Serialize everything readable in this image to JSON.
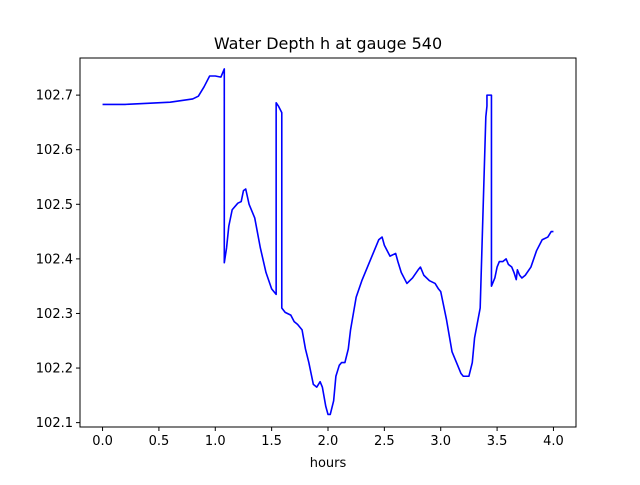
{
  "chart_data": {
    "type": "line",
    "title": "Water Depth h at gauge 540",
    "xlabel": "hours",
    "ylabel": "",
    "xlim": [
      -0.2,
      4.2
    ],
    "ylim": [
      102.092,
      102.768
    ],
    "grid": false,
    "legend": "none",
    "xticks": [
      0.0,
      0.5,
      1.0,
      1.5,
      2.0,
      2.5,
      3.0,
      3.5,
      4.0
    ],
    "xtick_labels": [
      "0.0",
      "0.5",
      "1.0",
      "1.5",
      "2.0",
      "2.5",
      "3.0",
      "3.5",
      "4.0"
    ],
    "yticks": [
      102.1,
      102.2,
      102.3,
      102.4,
      102.5,
      102.6,
      102.7
    ],
    "ytick_labels": [
      "102.1",
      "102.2",
      "102.3",
      "102.4",
      "102.5",
      "102.6",
      "102.7"
    ],
    "series": [
      {
        "color": "#0000ff",
        "x": [
          0.0,
          0.2,
          0.4,
          0.6,
          0.7,
          0.8,
          0.85,
          0.9,
          0.95,
          1.0,
          1.05,
          1.08,
          1.08,
          1.1,
          1.12,
          1.15,
          1.2,
          1.23,
          1.25,
          1.27,
          1.3,
          1.35,
          1.4,
          1.45,
          1.5,
          1.54,
          1.54,
          1.56,
          1.59,
          1.59,
          1.62,
          1.67,
          1.7,
          1.73,
          1.77,
          1.8,
          1.83,
          1.85,
          1.87,
          1.9,
          1.93,
          1.95,
          1.98,
          2.0,
          2.02,
          2.05,
          2.07,
          2.1,
          2.12,
          2.15,
          2.18,
          2.2,
          2.25,
          2.3,
          2.35,
          2.4,
          2.45,
          2.48,
          2.5,
          2.55,
          2.6,
          2.62,
          2.65,
          2.7,
          2.75,
          2.8,
          2.82,
          2.85,
          2.9,
          2.95,
          2.98,
          3.0,
          3.05,
          3.1,
          3.15,
          3.18,
          3.2,
          3.25,
          3.28,
          3.3,
          3.35,
          3.4,
          3.41,
          3.41,
          3.45,
          3.45,
          3.48,
          3.5,
          3.52,
          3.55,
          3.58,
          3.6,
          3.63,
          3.65,
          3.67,
          3.68,
          3.7,
          3.72,
          3.75,
          3.8,
          3.85,
          3.9,
          3.95,
          3.98,
          4.0
        ],
        "y": [
          102.683,
          102.683,
          102.685,
          102.687,
          102.69,
          102.693,
          102.698,
          102.715,
          102.735,
          102.735,
          102.733,
          102.748,
          102.393,
          102.42,
          102.46,
          102.49,
          102.502,
          102.505,
          102.525,
          102.528,
          102.5,
          102.475,
          102.42,
          102.375,
          102.345,
          102.335,
          102.686,
          102.68,
          102.668,
          102.31,
          102.302,
          102.297,
          102.285,
          102.28,
          102.27,
          102.235,
          102.21,
          102.19,
          102.17,
          102.165,
          102.175,
          102.165,
          102.13,
          102.115,
          102.115,
          102.14,
          102.185,
          102.205,
          102.21,
          102.21,
          102.235,
          102.27,
          102.33,
          102.36,
          102.385,
          102.41,
          102.435,
          102.44,
          102.425,
          102.405,
          102.41,
          102.395,
          102.375,
          102.355,
          102.365,
          102.38,
          102.385,
          102.37,
          102.36,
          102.355,
          102.345,
          102.34,
          102.29,
          102.23,
          102.205,
          102.19,
          102.185,
          102.185,
          102.21,
          102.255,
          102.31,
          102.66,
          102.68,
          102.7,
          102.7,
          102.35,
          102.365,
          102.385,
          102.395,
          102.395,
          102.4,
          102.39,
          102.385,
          102.375,
          102.362,
          102.38,
          102.37,
          102.365,
          102.37,
          102.385,
          102.415,
          102.435,
          102.44,
          102.45,
          102.45
        ]
      }
    ]
  }
}
